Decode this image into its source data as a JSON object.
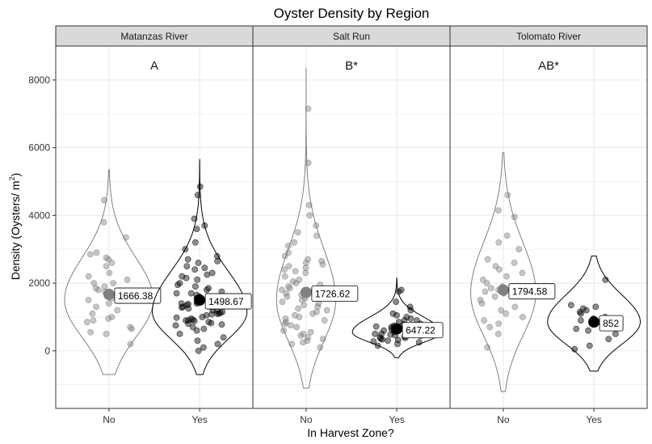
{
  "chart_data": {
    "type": "scatter",
    "title": "Oyster Density by Region",
    "xlabel": "In Harvest Zone?",
    "ylabel": "Density (Oysters / m²)",
    "ylabel_main": "Density (Oysters",
    "ylabel_unit": "/ m",
    "ylabel_sup": "2",
    "ylabel_close": ")",
    "ylim": [
      -1700,
      9000
    ],
    "yticks": [
      0,
      2000,
      4000,
      6000,
      8000
    ],
    "ytick_labels": [
      "0",
      "2000",
      "4000",
      "6000",
      "8000"
    ],
    "categories": [
      "No",
      "Yes"
    ],
    "grid": true,
    "colors": {
      "No": "#808080",
      "Yes": "#000000",
      "strip": "#d9d9d9",
      "grid": "#ebebeb"
    },
    "panels": [
      {
        "name": "Matanzas River",
        "group_label": "A",
        "groups": [
          {
            "category": "No",
            "mean": 1666.38,
            "mean_label": "1666.38",
            "violin": {
              "min": -700,
              "max": 5350,
              "peak": 1500,
              "peak_width": 0.45,
              "upper_sd": 1250,
              "lower_sd": 1100
            },
            "points": [
              2700,
              2600,
              2850,
              2900,
              2500,
              2300,
              2200,
              2100,
              2000,
              1900,
              1800,
              1700,
              1600,
              1500,
              1400,
              1300,
              1200,
              1100,
              1000,
              950,
              900,
              850,
              700,
              650,
              550,
              500,
              200,
              2000,
              1750,
              1550,
              1650,
              3800,
              4450,
              3350,
              2750,
              1850
            ]
          },
          {
            "category": "Yes",
            "mean": 1498.67,
            "mean_label": "1498.67",
            "violin": {
              "min": -700,
              "max": 5650,
              "peak": 1150,
              "peak_width": 0.48,
              "upper_sd": 1200,
              "lower_sd": 800
            },
            "points": [
              4850,
              4600,
              3900,
              3700,
              3600,
              3200,
              3000,
              2800,
              2700,
              2650,
              2600,
              2500,
              2450,
              2400,
              2300,
              2250,
              2200,
              2150,
              2100,
              2000,
              1950,
              1900,
              1850,
              1800,
              1750,
              1700,
              1650,
              1600,
              1550,
              1500,
              1450,
              1400,
              1380,
              1350,
              1300,
              1280,
              1250,
              1200,
              1180,
              1150,
              1120,
              1100,
              1080,
              1050,
              1000,
              980,
              950,
              920,
              900,
              880,
              850,
              820,
              800,
              780,
              750,
              700,
              650,
              600,
              500,
              400,
              300,
              200,
              100,
              0,
              1400,
              1600,
              1100,
              900,
              1700,
              1300
            ]
          }
        ]
      },
      {
        "name": "Salt Run",
        "group_label": "B*",
        "groups": [
          {
            "category": "No",
            "mean": 1726.62,
            "mean_label": "1726.62",
            "violin": {
              "min": -1100,
              "max": 8350,
              "peak": 1500,
              "peak_width": 0.3,
              "upper_sd": 1500,
              "lower_sd": 1200
            },
            "points": [
              7150,
              5550,
              4300,
              3700,
              3500,
              3400,
              3200,
              3100,
              2900,
              2800,
              2700,
              2650,
              2550,
              2500,
              2450,
              2400,
              2350,
              2300,
              2200,
              2100,
              2050,
              2000,
              1950,
              1900,
              1850,
              1800,
              1750,
              1700,
              1650,
              1600,
              1550,
              1500,
              1450,
              1400,
              1350,
              1300,
              1250,
              1200,
              1150,
              1100,
              1050,
              1000,
              950,
              900,
              850,
              800,
              750,
              700,
              600,
              550,
              500,
              450,
              400,
              350,
              300,
              250,
              200,
              100,
              4000,
              2600
            ]
          },
          {
            "category": "Yes",
            "mean": 647.22,
            "mean_label": "647.22",
            "violin": {
              "min": -200,
              "max": 2150,
              "peak": 550,
              "peak_width": 0.45,
              "upper_sd": 450,
              "lower_sd": 300
            },
            "points": [
              1800,
              1750,
              1450,
              1300,
              1200,
              1100,
              1050,
              1000,
              950,
              900,
              850,
              800,
              780,
              760,
              740,
              720,
              700,
              680,
              660,
              640,
              620,
              600,
              580,
              560,
              540,
              520,
              500,
              480,
              460,
              440,
              420,
              400,
              380,
              360,
              340,
              320,
              300,
              280,
              250,
              200,
              150,
              700,
              500,
              900,
              600
            ]
          }
        ]
      },
      {
        "name": "Tolomato River",
        "group_label": "AB*",
        "groups": [
          {
            "category": "No",
            "mean": 1794.58,
            "mean_label": "1794.58",
            "violin": {
              "min": -1200,
              "max": 5850,
              "peak": 1700,
              "peak_width": 0.33,
              "upper_sd": 1500,
              "lower_sd": 1250
            },
            "points": [
              4600,
              4150,
              3950,
              3400,
              3200,
              3000,
              2700,
              2500,
              2400,
              2300,
              2200,
              2100,
              2000,
              1900,
              1850,
              1800,
              1700,
              1600,
              1500,
              1400,
              1300,
              1200,
              1100,
              1000,
              900,
              800,
              700,
              500,
              100,
              1750,
              2600
            ]
          },
          {
            "category": "Yes",
            "mean": 852,
            "mean_label": "852",
            "violin": {
              "min": -600,
              "max": 2800,
              "peak": 850,
              "peak_width": 0.47,
              "upper_sd": 800,
              "lower_sd": 650
            },
            "points": [
              2100,
              1350,
              1300,
              1250,
              1200,
              1100,
              1000,
              950,
              900,
              850,
              800,
              700,
              600,
              500,
              350,
              150,
              50,
              1150,
              650
            ]
          }
        ]
      }
    ]
  }
}
